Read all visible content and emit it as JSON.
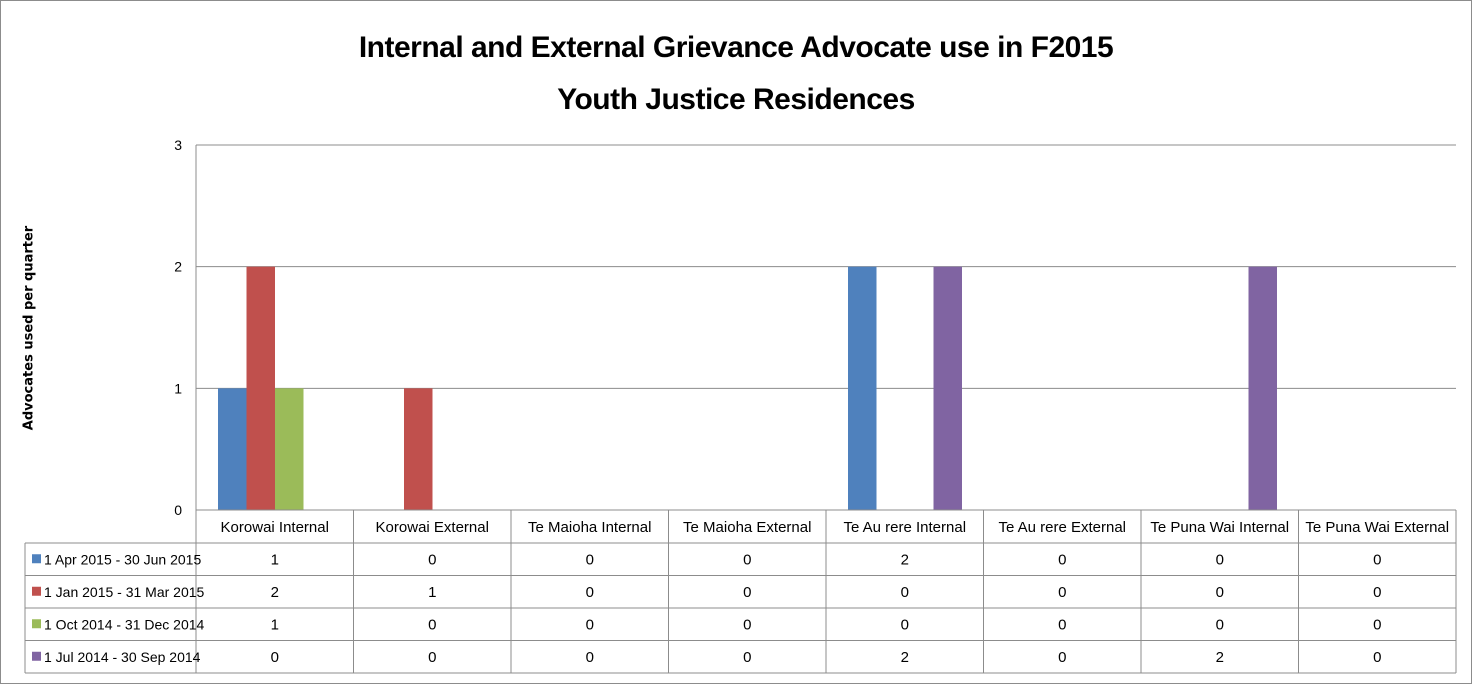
{
  "chart_data": {
    "type": "bar",
    "title_lines": [
      "Internal and External Grievance Advocate use in F2015",
      "Youth Justice Residences"
    ],
    "xlabel": "",
    "ylabel": "Advocates used per quarter",
    "ylim": [
      0,
      3
    ],
    "yticks": [
      "0",
      "1",
      "2",
      "3"
    ],
    "grid": true,
    "legend_placement": "data-table",
    "categories": [
      "Korowai Internal",
      "Korowai External",
      "Te Maioha Internal",
      "Te Maioha External",
      "Te Au rere Internal",
      "Te Au rere External",
      "Te Puna Wai Internal",
      "Te Puna Wai External"
    ],
    "series": [
      {
        "name": "1 Apr 2015 - 30 Jun  2015",
        "color": "#4f81bd",
        "values": [
          1,
          0,
          0,
          0,
          2,
          0,
          0,
          0
        ]
      },
      {
        "name": "1 Jan 2015 - 31 Mar 2015",
        "color": "#c0504d",
        "values": [
          2,
          1,
          0,
          0,
          0,
          0,
          0,
          0
        ]
      },
      {
        "name": "1 Oct 2014 - 31 Dec 2014",
        "color": "#9bbb59",
        "values": [
          1,
          0,
          0,
          0,
          0,
          0,
          0,
          0
        ]
      },
      {
        "name": "1 Jul 2014 - 30 Sep 2014",
        "color": "#8064a2",
        "values": [
          0,
          0,
          0,
          0,
          2,
          0,
          2,
          0
        ]
      }
    ]
  }
}
